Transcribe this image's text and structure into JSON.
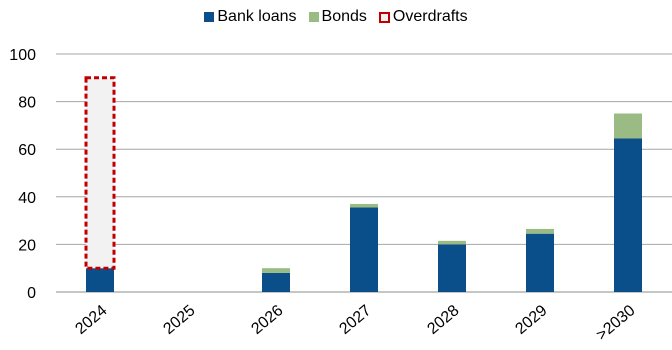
{
  "chart_data": {
    "type": "bar",
    "stacked": true,
    "categories": [
      "2024",
      "2025",
      "2026",
      "2027",
      "2028",
      "2029",
      ">2030"
    ],
    "series": [
      {
        "name": "Bank loans",
        "color": "#0b4f8a",
        "values": [
          10,
          0,
          8,
          35.5,
          20,
          24.5,
          64.5
        ]
      },
      {
        "name": "Bonds",
        "color": "#9bbb84",
        "values": [
          0,
          0,
          2,
          1.5,
          1.5,
          2,
          10.5
        ]
      }
    ],
    "overdrafts": {
      "name": "Overdrafts",
      "color": "#c00000",
      "fill": "#f2f2f2",
      "category": "2024",
      "from": 10,
      "to": 90
    },
    "yticks": [
      0,
      20,
      40,
      60,
      80,
      100
    ],
    "ylim": [
      0,
      100
    ],
    "grid": true,
    "legend_position": "top-center"
  }
}
